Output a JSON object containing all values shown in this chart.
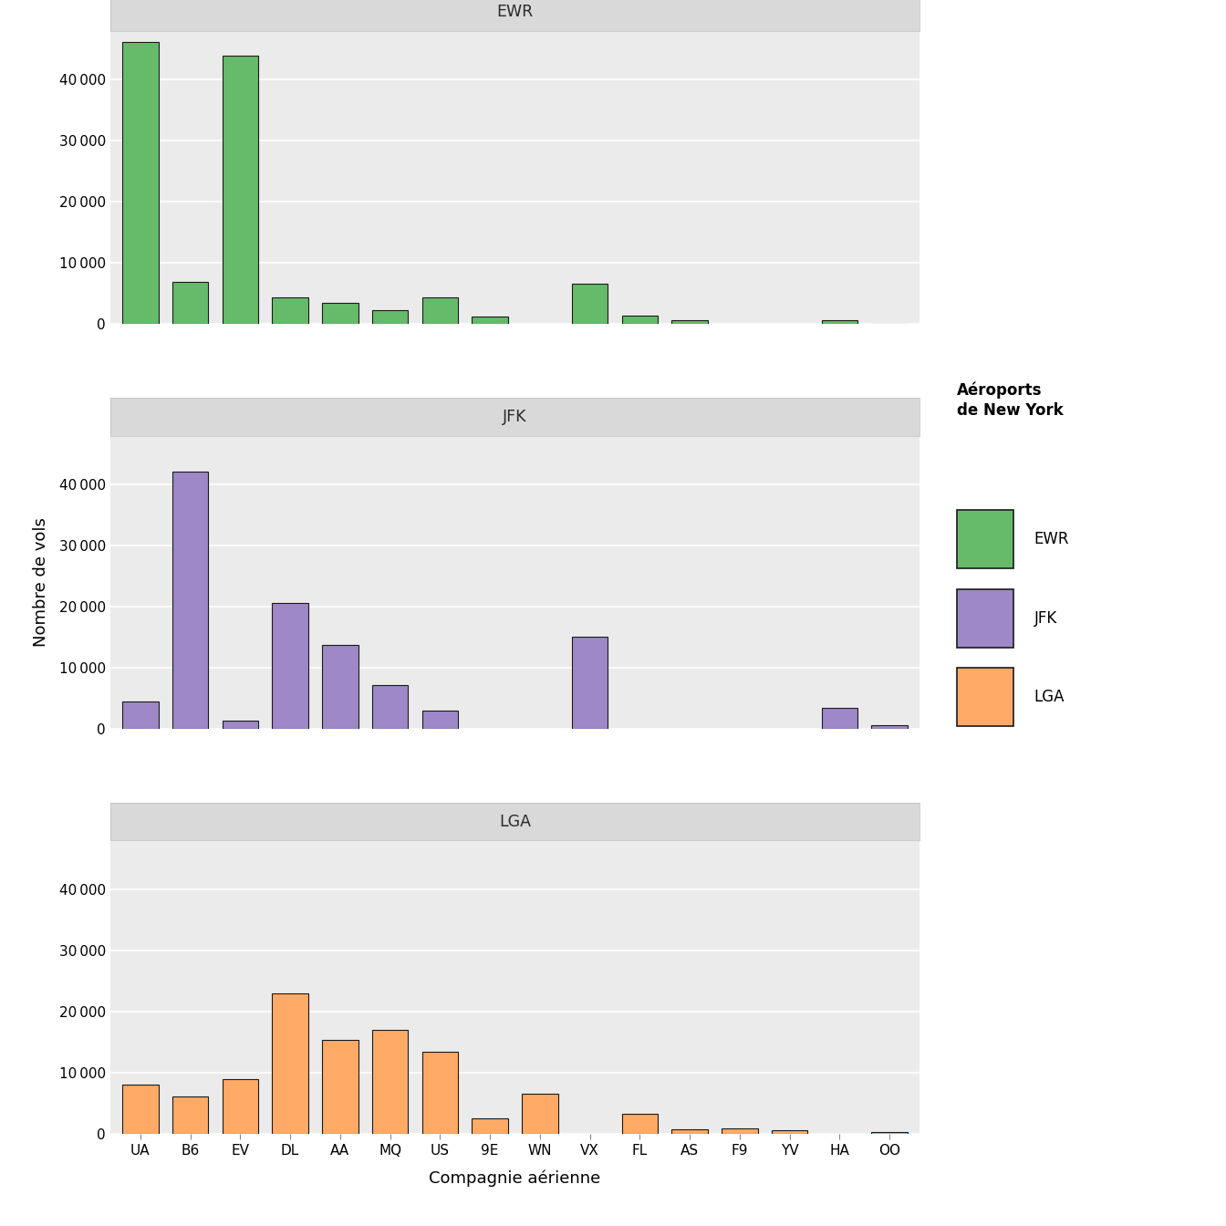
{
  "airports": [
    "EWR",
    "JFK",
    "LGA"
  ],
  "x_order": [
    "UA",
    "B6",
    "EV",
    "DL",
    "AA",
    "MQ",
    "US",
    "9E",
    "WN",
    "VX",
    "FL",
    "AS",
    "F9",
    "YV",
    "HA",
    "OO"
  ],
  "data": {
    "EWR": {
      "UA": 46087,
      "B6": 6955,
      "EV": 43939,
      "DL": 4342,
      "AA": 3487,
      "MQ": 2276,
      "US": 4405,
      "9E": 1268,
      "WN": 0,
      "VX": 6554,
      "FL": 1408,
      "AS": 714,
      "F9": 0,
      "YV": 0,
      "HA": 697,
      "OO": 32
    },
    "JFK": {
      "UA": 4534,
      "B6": 42076,
      "EV": 1408,
      "DL": 20701,
      "AA": 13783,
      "MQ": 7193,
      "US": 2994,
      "9E": 0,
      "WN": 0,
      "VX": 15054,
      "FL": 0,
      "AS": 0,
      "F9": 0,
      "YV": 0,
      "HA": 3468,
      "OO": 660
    },
    "LGA": {
      "UA": 8044,
      "B6": 6215,
      "EV": 8965,
      "DL": 23067,
      "AA": 15459,
      "MQ": 17083,
      "US": 13495,
      "9E": 2541,
      "WN": 6554,
      "VX": 0,
      "FL": 3260,
      "AS": 714,
      "F9": 922,
      "YV": 601,
      "HA": 0,
      "OO": 374
    }
  },
  "colors": {
    "EWR": "#66BB6A",
    "JFK": "#9E88C8",
    "LGA": "#FFAA66"
  },
  "bar_edge_color": "#1a1a1a",
  "background_panel": "#EBEBEB",
  "background_figure": "#FFFFFF",
  "grid_color": "#FFFFFF",
  "strip_bg": "#D9D9D9",
  "strip_border": "#C0C0C0",
  "ylabel": "Nombre de vols",
  "xlabel": "Compagnie aérienne",
  "legend_title_line1": "Aéroports",
  "legend_title_line2": "de New York",
  "legend_labels": [
    "EWR",
    "JFK",
    "LGA"
  ],
  "yticks": [
    0,
    10000,
    20000,
    30000,
    40000
  ],
  "ylim": [
    0,
    48000
  ]
}
